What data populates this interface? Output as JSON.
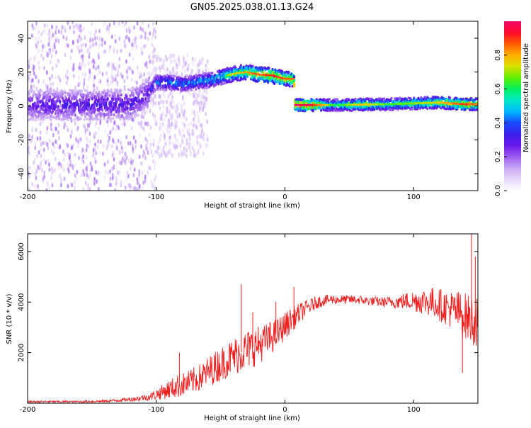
{
  "title": "GN05.2025.038.01.13.G24",
  "chart_data": [
    {
      "type": "heatmap",
      "xlabel": "Height of straight line (km)",
      "ylabel": "Frequency (Hz)",
      "xlim": [
        -200,
        150
      ],
      "ylim": [
        -50,
        50
      ],
      "xticks": [
        -200,
        -100,
        0,
        100
      ],
      "yticks": [
        -40,
        -20,
        0,
        20,
        40
      ],
      "grid": false,
      "colorbar": {
        "label": "Normalized spectral amplitude",
        "range": [
          0,
          1
        ],
        "ticks": [
          0.0,
          0.2,
          0.4,
          0.6,
          0.8
        ],
        "colormap": [
          "#ffffff",
          "#e8d8fb",
          "#c9a8f5",
          "#9a5cf0",
          "#6a18ea",
          "#3a20e8",
          "#1a4aff",
          "#00b8ff",
          "#00e8c8",
          "#00f060",
          "#60f000",
          "#d8e000",
          "#ffb000",
          "#ff5a00",
          "#ff0a2a",
          "#f00a6a"
        ]
      },
      "ridge": [
        {
          "x": -200,
          "f": 0.5,
          "a": 0.3
        },
        {
          "x": -180,
          "f": 0.5,
          "a": 0.32
        },
        {
          "x": -160,
          "f": 0.5,
          "a": 0.32
        },
        {
          "x": -140,
          "f": 0.8,
          "a": 0.33
        },
        {
          "x": -120,
          "f": 1.0,
          "a": 0.33
        },
        {
          "x": -108,
          "f": 6,
          "a": 0.3
        },
        {
          "x": -100,
          "f": 14,
          "a": 0.45
        },
        {
          "x": -90,
          "f": 14,
          "a": 0.48
        },
        {
          "x": -80,
          "f": 13,
          "a": 0.46
        },
        {
          "x": -70,
          "f": 14,
          "a": 0.48
        },
        {
          "x": -60,
          "f": 15,
          "a": 0.5
        },
        {
          "x": -50,
          "f": 17,
          "a": 0.58
        },
        {
          "x": -40,
          "f": 19,
          "a": 0.7
        },
        {
          "x": -30,
          "f": 20,
          "a": 0.75
        },
        {
          "x": -20,
          "f": 18.5,
          "a": 0.82
        },
        {
          "x": -10,
          "f": 18,
          "a": 0.9
        },
        {
          "x": 0,
          "f": 16,
          "a": 0.8
        },
        {
          "x": 7,
          "f": 16,
          "a": 0.8
        },
        {
          "x": 8,
          "f": 0.5,
          "a": 0.95
        },
        {
          "x": 20,
          "f": 0.5,
          "a": 0.92
        },
        {
          "x": 40,
          "f": 0.5,
          "a": 0.55
        },
        {
          "x": 60,
          "f": 0.8,
          "a": 0.75
        },
        {
          "x": 80,
          "f": 1.0,
          "a": 0.6
        },
        {
          "x": 100,
          "f": 1.5,
          "a": 0.65
        },
        {
          "x": 120,
          "f": 2.0,
          "a": 0.72
        },
        {
          "x": 140,
          "f": 1.0,
          "a": 0.85
        },
        {
          "x": 150,
          "f": 1.0,
          "a": 0.8
        }
      ]
    },
    {
      "type": "line",
      "xlabel": "Height of straight line (km)",
      "ylabel": "SNR (10 * v/v)",
      "xlim": [
        -200,
        150
      ],
      "ylim": [
        0,
        6700
      ],
      "xticks": [
        -200,
        -100,
        0,
        100
      ],
      "yticks": [
        2000,
        4000,
        6000
      ],
      "grid": false,
      "color": "#f02020",
      "series": [
        {
          "x": [
            -200,
            -180,
            -160,
            -140,
            -120,
            -105,
            -95,
            -85,
            -75,
            -65,
            -55,
            -45,
            -35,
            -25,
            -15,
            -5,
            5,
            15,
            25,
            35,
            45,
            55,
            65,
            75,
            85,
            95,
            105,
            115,
            125,
            135,
            145,
            150
          ],
          "values": [
            60,
            60,
            60,
            80,
            150,
            250,
            450,
            650,
            800,
            1050,
            1400,
            1700,
            2000,
            2200,
            2450,
            2800,
            3300,
            3700,
            4000,
            4100,
            4100,
            4100,
            4050,
            4000,
            4000,
            4050,
            4050,
            4000,
            3800,
            3600,
            3300,
            3200
          ],
          "spread": [
            40,
            40,
            40,
            50,
            80,
            150,
            300,
            450,
            500,
            550,
            650,
            700,
            800,
            800,
            700,
            600,
            500,
            350,
            250,
            200,
            180,
            180,
            180,
            200,
            250,
            350,
            500,
            600,
            700,
            850,
            1000,
            1000
          ]
        }
      ],
      "annotations": [
        {
          "x": -82,
          "y": 2000
        },
        {
          "x": -34,
          "y": 4700
        },
        {
          "x": -25,
          "y": 3600
        },
        {
          "x": -7,
          "y": 4000
        },
        {
          "x": 7,
          "y": 4600
        },
        {
          "x": 135,
          "y": 4400
        },
        {
          "x": 145,
          "y": 6700
        },
        {
          "x": 148,
          "y": 5800
        },
        {
          "x": 138,
          "y": 1200
        }
      ]
    }
  ]
}
